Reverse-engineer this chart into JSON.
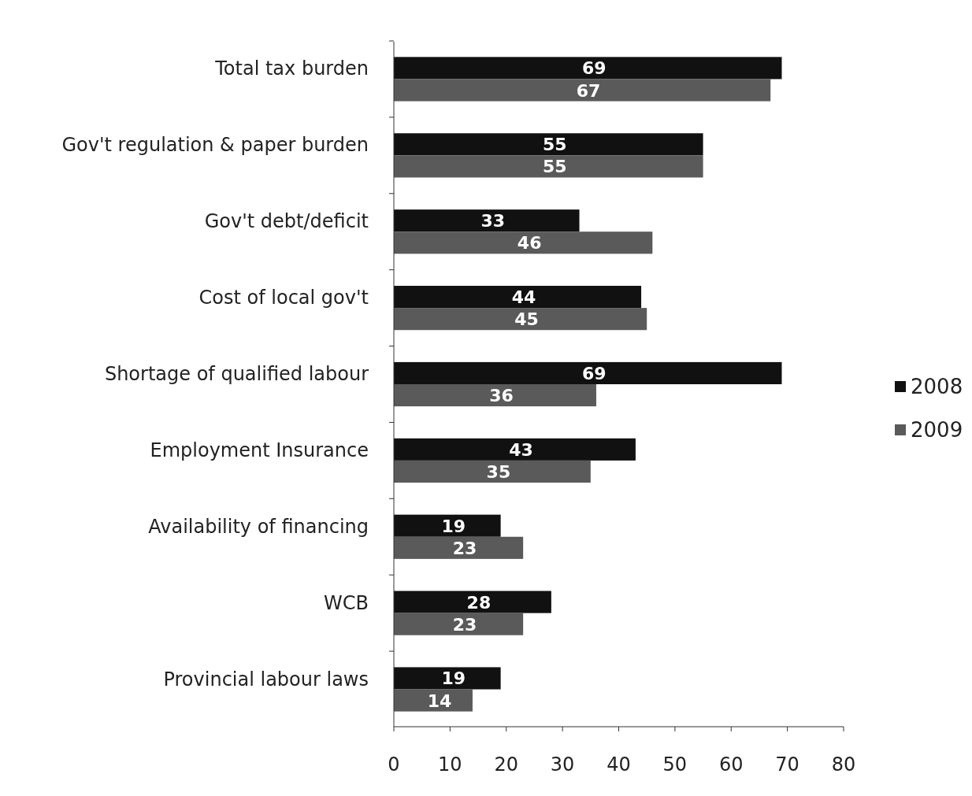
{
  "chart_data": {
    "type": "bar",
    "orientation": "horizontal",
    "categories": [
      "Total tax burden",
      "Gov't regulation & paper burden",
      "Gov't debt/deficit",
      "Cost of local gov't",
      "Shortage of qualified labour",
      "Employment Insurance",
      "Availability of financing",
      "WCB",
      "Provincial labour laws"
    ],
    "series": [
      {
        "name": "2008",
        "color": "#111111",
        "values": [
          69,
          55,
          33,
          44,
          69,
          43,
          19,
          28,
          19
        ]
      },
      {
        "name": "2009",
        "color": "#5a5a5a",
        "values": [
          67,
          55,
          46,
          45,
          36,
          35,
          23,
          23,
          14
        ]
      }
    ],
    "xlim": [
      0,
      80
    ],
    "xticks": [
      0,
      10,
      20,
      30,
      40,
      50,
      60,
      70,
      80
    ],
    "data_labels": true,
    "legend": "right",
    "grid": false
  }
}
